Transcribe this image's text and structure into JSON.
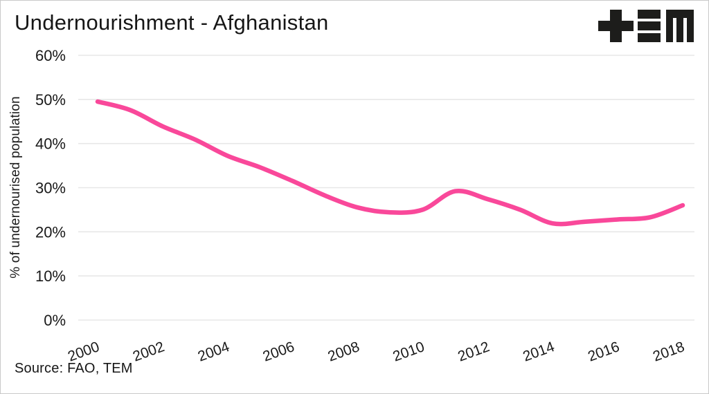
{
  "header": {
    "title": "Undernourishment - Afghanistan",
    "logo_alt": "TEM"
  },
  "footer": {
    "source": "Source: FAO, TEM"
  },
  "colors": {
    "line": "#f9489a",
    "grid": "#e7e7e7",
    "text": "#191919",
    "logo": "#1d1d1b"
  },
  "chart_data": {
    "type": "line",
    "title": "Undernourishment - Afghanistan",
    "xlabel": "",
    "ylabel": "% of undernourised population",
    "x": [
      2000,
      2001,
      2002,
      2003,
      2004,
      2005,
      2006,
      2007,
      2008,
      2009,
      2010,
      2011,
      2012,
      2013,
      2014,
      2015,
      2016,
      2017,
      2018
    ],
    "series": [
      {
        "name": "Afghanistan",
        "color": "#f9489a",
        "values": [
          49.5,
          47.6,
          43.9,
          40.9,
          37.2,
          34.6,
          31.5,
          28.2,
          25.5,
          24.4,
          25.0,
          29.2,
          27.4,
          25.0,
          21.9,
          22.3,
          22.8,
          23.3,
          26.0
        ]
      }
    ],
    "ylim": [
      0,
      60
    ],
    "grid": true,
    "legend": false,
    "yticks": [
      {
        "value": 0,
        "label": "0%"
      },
      {
        "value": 10,
        "label": "10%"
      },
      {
        "value": 20,
        "label": "20%"
      },
      {
        "value": 30,
        "label": "30%"
      },
      {
        "value": 40,
        "label": "40%"
      },
      {
        "value": 50,
        "label": "50%"
      },
      {
        "value": 60,
        "label": "60%"
      }
    ],
    "xticks": [
      {
        "value": 2000,
        "label": "2000"
      },
      {
        "value": 2002,
        "label": "2002"
      },
      {
        "value": 2004,
        "label": "2004"
      },
      {
        "value": 2006,
        "label": "2006"
      },
      {
        "value": 2008,
        "label": "2008"
      },
      {
        "value": 2010,
        "label": "2010"
      },
      {
        "value": 2012,
        "label": "2012"
      },
      {
        "value": 2014,
        "label": "2014"
      },
      {
        "value": 2016,
        "label": "2016"
      },
      {
        "value": 2018,
        "label": "2018"
      }
    ]
  }
}
